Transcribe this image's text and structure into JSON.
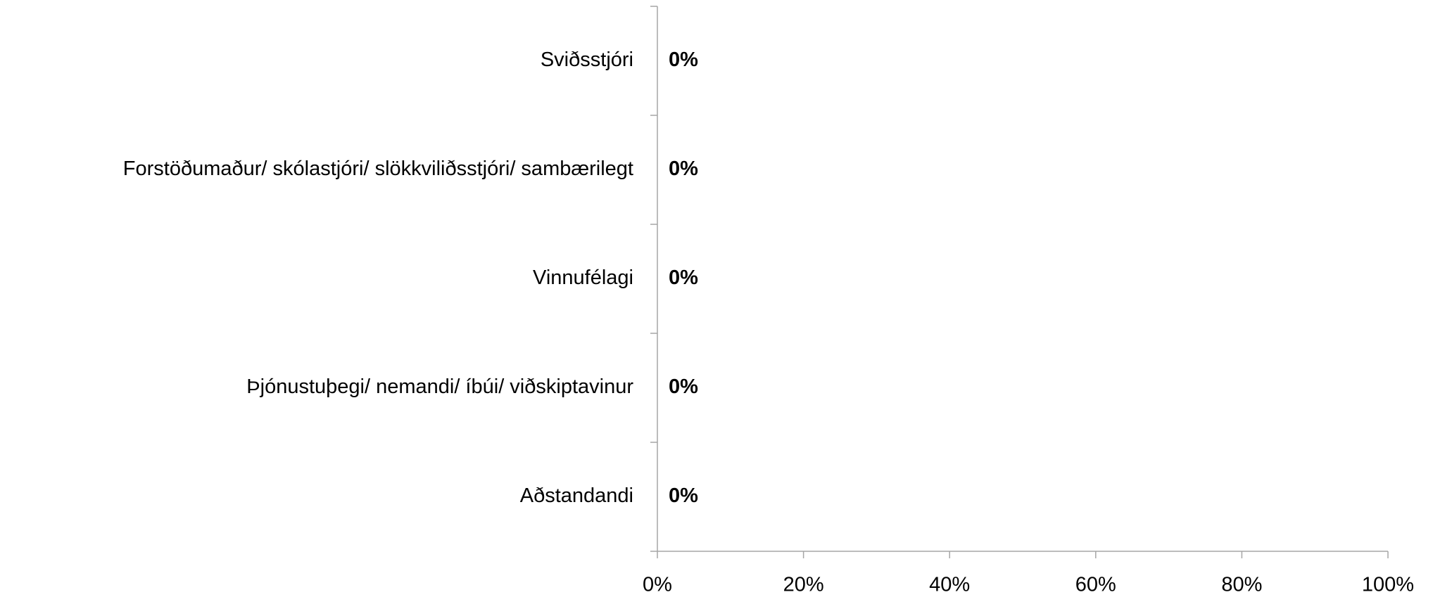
{
  "chart_data": {
    "type": "bar",
    "orientation": "horizontal",
    "categories": [
      "Sviðsstjóri",
      "Forstöðumaður/ skólastjóri/ slökkviliðsstjóri/ sambærilegt",
      "Vinnufélagi",
      "Þjónustuþegi/ nemandi/ íbúi/ viðskiptavinur",
      "Aðstandandi"
    ],
    "values": [
      0,
      0,
      0,
      0,
      0
    ],
    "value_labels": [
      "0%",
      "0%",
      "0%",
      "0%",
      "0%"
    ],
    "color": "#4f81bd",
    "xlim": [
      0,
      100
    ],
    "xticks": [
      {
        "value": 0,
        "label": "0%"
      },
      {
        "value": 20,
        "label": "20%"
      },
      {
        "value": 40,
        "label": "40%"
      },
      {
        "value": 60,
        "label": "60%"
      },
      {
        "value": 80,
        "label": "80%"
      },
      {
        "value": 100,
        "label": "100%"
      }
    ],
    "grid": false
  }
}
